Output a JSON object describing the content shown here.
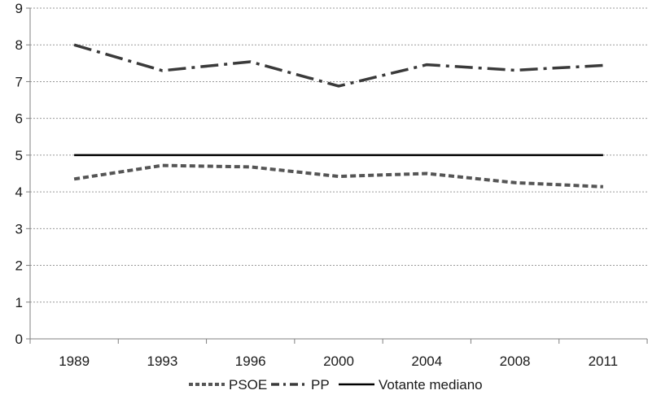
{
  "chart_data": {
    "type": "line",
    "categories": [
      "1989",
      "1993",
      "1996",
      "2000",
      "2004",
      "2008",
      "2011"
    ],
    "series": [
      {
        "name": "PSOE",
        "values": [
          4.35,
          4.72,
          4.68,
          4.42,
          4.5,
          4.25,
          4.14
        ],
        "color": "#555555",
        "line_style": "dashed"
      },
      {
        "name": "PP",
        "values": [
          8.0,
          7.3,
          7.54,
          6.88,
          7.46,
          7.31,
          7.44
        ],
        "color": "#3a3a3a",
        "line_style": "dash-dot"
      },
      {
        "name": "Votante mediano",
        "values": [
          5,
          5,
          5,
          5,
          5,
          5,
          5
        ],
        "color": "#000000",
        "line_style": "solid"
      }
    ],
    "title": "",
    "xlabel": "",
    "ylabel": "",
    "ylim": [
      0,
      9
    ],
    "yticks": [
      "0",
      "1",
      "2",
      "3",
      "4",
      "5",
      "6",
      "7",
      "8",
      "9"
    ],
    "grid": true,
    "legend_position": "bottom"
  }
}
